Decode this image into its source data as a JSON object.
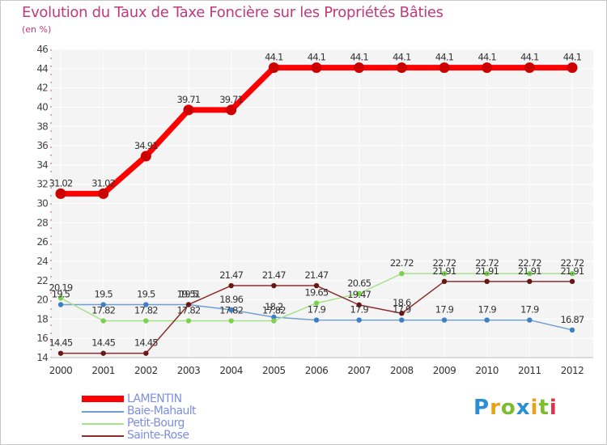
{
  "title": "Evolution du Taux de Taxe Foncière sur les Propriétés Bâties",
  "unit": "(en %)",
  "logo": "Proxiti",
  "chart_data": {
    "type": "line",
    "title": "Evolution du Taux de Taxe Foncière sur les Propriétés Bâties",
    "ylabel": "(en %)",
    "xlabel": "",
    "categories": [
      "2000",
      "2001",
      "2002",
      "2003",
      "2004",
      "2005",
      "2006",
      "2007",
      "2008",
      "2009",
      "2010",
      "2011",
      "2012"
    ],
    "ylim": [
      14,
      46
    ],
    "yticks": [
      14,
      16,
      18,
      20,
      22,
      24,
      26,
      28,
      30,
      32,
      34,
      36,
      38,
      40,
      42,
      44,
      46
    ],
    "grid": true,
    "legend_position": "bottom-left",
    "series": [
      {
        "name": "LAMENTIN",
        "color": "#ff0000",
        "marker": "#cc0000",
        "width": 7,
        "values": [
          31.02,
          31.02,
          34.91,
          39.71,
          39.71,
          44.1,
          44.1,
          44.1,
          44.1,
          44.1,
          44.1,
          44.1,
          44.1
        ],
        "labels": [
          "31.02",
          "31.02",
          "34.91",
          "39.71",
          "39.71",
          "44.1",
          "44.1",
          "44.1",
          "44.1",
          "44.1",
          "44.1",
          "44.1",
          "44.1"
        ]
      },
      {
        "name": "Baie-Mahault",
        "color": "#6e9ed3",
        "marker": "#3e7fc4",
        "width": 1.5,
        "values": [
          19.5,
          19.5,
          19.5,
          19.5,
          18.96,
          18.2,
          17.9,
          17.9,
          17.9,
          17.9,
          17.9,
          17.9,
          16.87
        ],
        "labels": [
          "19.5",
          "19.5",
          "19.5",
          "19.5",
          "18.96",
          "18.2",
          "17.9",
          "17.9",
          "17.9",
          "17.9",
          "17.9",
          "17.9",
          "16.87"
        ]
      },
      {
        "name": "Petit-Bourg",
        "color": "#a6e28a",
        "marker": "#7ad24e",
        "width": 1.5,
        "values": [
          20.19,
          17.82,
          17.82,
          17.82,
          17.82,
          17.82,
          19.65,
          20.65,
          22.72,
          22.72,
          22.72,
          22.72,
          22.72
        ],
        "labels": [
          "20.19",
          "17.82",
          "17.82",
          "17.82",
          "17.82",
          "17.82",
          "19.65",
          "20.65",
          "22.72",
          "22.72",
          "22.72",
          "22.72",
          "22.72"
        ]
      },
      {
        "name": "Sainte-Rose",
        "color": "#8b2c2c",
        "marker": "#6a1616",
        "width": 1.5,
        "values": [
          14.45,
          14.45,
          14.45,
          19.51,
          21.47,
          21.47,
          21.47,
          19.47,
          18.6,
          21.91,
          21.91,
          21.91,
          21.91
        ],
        "labels": [
          "14.45",
          "14.45",
          "14.45",
          "19.51",
          "21.47",
          "21.47",
          "21.47",
          "19.47",
          "18.6",
          "21.91",
          "21.91",
          "21.91",
          "21.91"
        ]
      }
    ]
  }
}
